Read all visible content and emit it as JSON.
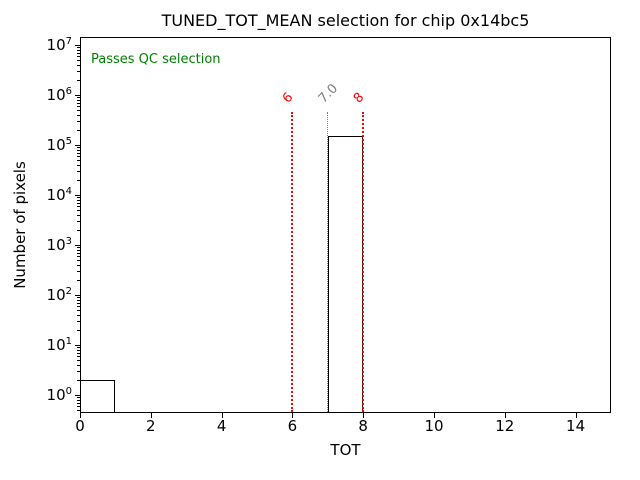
{
  "chart_data": {
    "type": "bar",
    "title": "TUNED_TOT_MEAN selection for chip 0x14bc5",
    "xlabel": "TOT",
    "ylabel": "Number of pixels",
    "yscale": "log",
    "grid": false,
    "legend": "none",
    "xlim": [
      0,
      15
    ],
    "ylim": [
      0.44,
      14500000
    ],
    "x_ticks": [
      0,
      2,
      4,
      6,
      8,
      10,
      12,
      14
    ],
    "y_tick_exponents": [
      0,
      1,
      2,
      3,
      4,
      5,
      6,
      7
    ],
    "bars": [
      {
        "x_start": 0,
        "x_end": 1,
        "count": 2
      },
      {
        "x_start": 7,
        "x_end": 8,
        "count": 150000
      }
    ],
    "selection_lines": [
      {
        "x": 6,
        "label": "6",
        "color": "#ff0000",
        "style": "dotted",
        "width": 2
      },
      {
        "x": 7,
        "label": "7.0",
        "color": "#7f7f7f",
        "style": "dotted",
        "width": 1.6
      },
      {
        "x": 8,
        "label": "8",
        "color": "#ff0000",
        "style": "dotted",
        "width": 2
      }
    ],
    "selection_line_top": 450000,
    "annotation": {
      "text": "Passes QC selection",
      "color": "#008000"
    },
    "colors": {
      "histogram_edge": "#000000",
      "cut_line": "#ff0000",
      "center_line": "#7f7f7f",
      "qc_text": "#008000"
    }
  }
}
